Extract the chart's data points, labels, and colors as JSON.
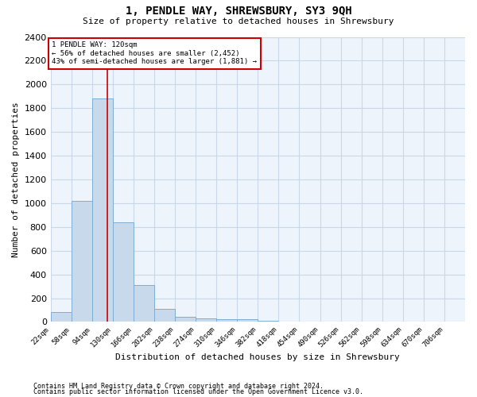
{
  "title": "1, PENDLE WAY, SHREWSBURY, SY3 9QH",
  "subtitle": "Size of property relative to detached houses in Shrewsbury",
  "xlabel": "Distribution of detached houses by size in Shrewsbury",
  "ylabel": "Number of detached properties",
  "footnote1": "Contains HM Land Registry data © Crown copyright and database right 2024.",
  "footnote2": "Contains public sector information licensed under the Open Government Licence v3.0.",
  "annotation_line1": "1 PENDLE WAY: 120sqm",
  "annotation_line2": "← 56% of detached houses are smaller (2,452)",
  "annotation_line3": "43% of semi-detached houses are larger (1,881) →",
  "property_size": 120,
  "bin_edges": [
    22,
    58,
    94,
    130,
    166,
    202,
    238,
    274,
    310,
    346,
    382,
    418,
    454,
    490,
    526,
    562,
    598,
    634,
    670,
    706,
    742
  ],
  "bar_heights": [
    80,
    1020,
    1880,
    840,
    310,
    110,
    45,
    30,
    25,
    20,
    8,
    4,
    2,
    1,
    0,
    0,
    0,
    0,
    0,
    0
  ],
  "bar_color": "#c9d9ec",
  "bar_edge_color": "#7eadd4",
  "grid_color": "#c8d8e8",
  "background_color": "#eef4fb",
  "vline_color": "#cc0000",
  "vline_x": 120,
  "annotation_box_edge_color": "#cc0000",
  "ylim": [
    0,
    2400
  ],
  "yticks": [
    0,
    200,
    400,
    600,
    800,
    1000,
    1200,
    1400,
    1600,
    1800,
    2000,
    2200,
    2400
  ]
}
